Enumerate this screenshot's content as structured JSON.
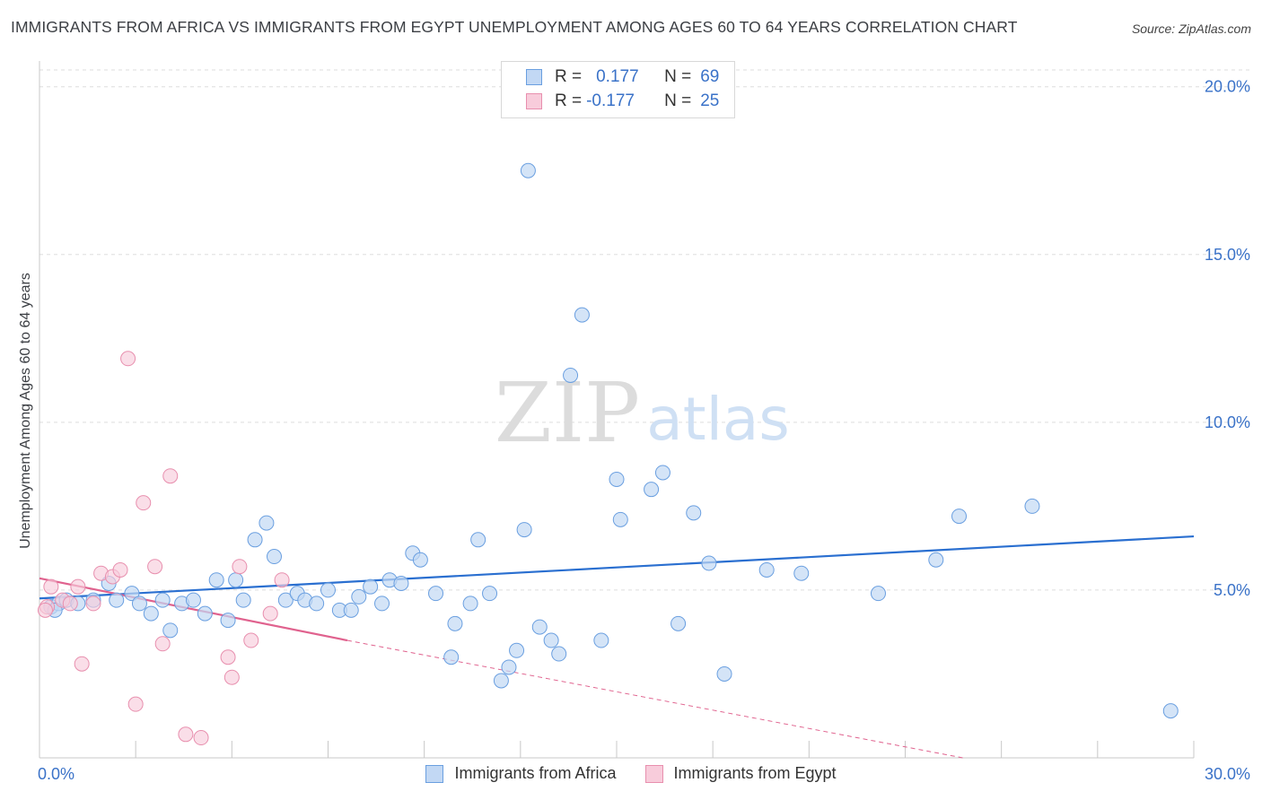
{
  "title": "IMMIGRANTS FROM AFRICA VS IMMIGRANTS FROM EGYPT UNEMPLOYMENT AMONG AGES 60 TO 64 YEARS CORRELATION CHART",
  "source": "Source: ZipAtlas.com",
  "watermark": {
    "zip": "ZIP",
    "atlas": "atlas"
  },
  "legend": {
    "africa": {
      "r_label": "R =",
      "r_value": "0.177",
      "n_label": "N =",
      "n_value": "69"
    },
    "egypt": {
      "r_label": "R =",
      "r_value": "-0.177",
      "n_label": "N =",
      "n_value": "25"
    }
  },
  "chart_data": {
    "type": "scatter",
    "title": "IMMIGRANTS FROM AFRICA VS IMMIGRANTS FROM EGYPT UNEMPLOYMENT AMONG AGES 60 TO 64 YEARS CORRELATION CHART",
    "xlabel": "",
    "ylabel": "Unemployment Among Ages 60 to 64 years",
    "xlim": [
      0,
      30
    ],
    "ylim": [
      0,
      20.5
    ],
    "x_tick_labels": [
      {
        "value": 0,
        "label": "0.0%"
      },
      {
        "value": 30,
        "label": "30.0%"
      }
    ],
    "y_tick_labels": [
      {
        "value": 5,
        "label": "5.0%"
      },
      {
        "value": 10,
        "label": "10.0%"
      },
      {
        "value": 15,
        "label": "15.0%"
      },
      {
        "value": 20,
        "label": "20.0%"
      }
    ],
    "grid": true,
    "colors": {
      "africa": "#6a9fe0",
      "africa_fill": "#c2d8f4",
      "africa_line": "#2a6fd0",
      "egypt": "#e88fae",
      "egypt_fill": "#f8ccdb",
      "egypt_line": "#e0628e"
    },
    "series": [
      {
        "name": "Immigrants from Africa",
        "points": [
          [
            0.3,
            4.5
          ],
          [
            0.5,
            4.6
          ],
          [
            0.7,
            4.7
          ],
          [
            1.0,
            4.6
          ],
          [
            1.4,
            4.7
          ],
          [
            1.8,
            5.2
          ],
          [
            2.0,
            4.7
          ],
          [
            2.4,
            4.9
          ],
          [
            2.6,
            4.6
          ],
          [
            2.9,
            4.3
          ],
          [
            3.2,
            4.7
          ],
          [
            3.4,
            3.8
          ],
          [
            3.7,
            4.6
          ],
          [
            4.0,
            4.7
          ],
          [
            4.3,
            4.3
          ],
          [
            4.6,
            5.3
          ],
          [
            4.9,
            4.1
          ],
          [
            5.1,
            5.3
          ],
          [
            5.3,
            4.7
          ],
          [
            5.6,
            6.5
          ],
          [
            5.9,
            7.0
          ],
          [
            6.1,
            6.0
          ],
          [
            6.4,
            4.7
          ],
          [
            6.7,
            4.9
          ],
          [
            6.9,
            4.7
          ],
          [
            7.2,
            4.6
          ],
          [
            7.5,
            5.0
          ],
          [
            7.8,
            4.4
          ],
          [
            8.1,
            4.4
          ],
          [
            8.3,
            4.8
          ],
          [
            8.6,
            5.1
          ],
          [
            8.9,
            4.6
          ],
          [
            9.1,
            5.3
          ],
          [
            9.4,
            5.2
          ],
          [
            9.7,
            6.1
          ],
          [
            9.9,
            5.9
          ],
          [
            10.3,
            4.9
          ],
          [
            10.8,
            4.0
          ],
          [
            10.7,
            3.0
          ],
          [
            11.2,
            4.6
          ],
          [
            11.4,
            6.5
          ],
          [
            11.7,
            4.9
          ],
          [
            12.0,
            2.3
          ],
          [
            12.2,
            2.7
          ],
          [
            12.4,
            3.2
          ],
          [
            12.6,
            6.8
          ],
          [
            12.7,
            17.5
          ],
          [
            13.0,
            3.9
          ],
          [
            13.3,
            3.5
          ],
          [
            13.5,
            3.1
          ],
          [
            13.8,
            11.4
          ],
          [
            14.1,
            13.2
          ],
          [
            14.6,
            3.5
          ],
          [
            15.0,
            8.3
          ],
          [
            15.1,
            7.1
          ],
          [
            15.9,
            8.0
          ],
          [
            16.2,
            8.5
          ],
          [
            16.6,
            4.0
          ],
          [
            17.0,
            7.3
          ],
          [
            17.4,
            5.8
          ],
          [
            17.8,
            2.5
          ],
          [
            18.9,
            5.6
          ],
          [
            19.8,
            5.5
          ],
          [
            21.8,
            4.9
          ],
          [
            23.3,
            5.9
          ],
          [
            23.9,
            7.2
          ],
          [
            25.8,
            7.5
          ],
          [
            29.4,
            1.4
          ],
          [
            0.4,
            4.4
          ]
        ],
        "trend": {
          "x": [
            0,
            30
          ],
          "y": [
            4.75,
            6.6
          ]
        }
      },
      {
        "name": "Immigrants from Egypt",
        "points": [
          [
            0.2,
            4.5
          ],
          [
            0.3,
            5.1
          ],
          [
            0.6,
            4.7
          ],
          [
            0.8,
            4.6
          ],
          [
            1.0,
            5.1
          ],
          [
            1.1,
            2.8
          ],
          [
            1.4,
            4.6
          ],
          [
            1.6,
            5.5
          ],
          [
            1.9,
            5.4
          ],
          [
            2.1,
            5.6
          ],
          [
            2.3,
            11.9
          ],
          [
            2.5,
            1.6
          ],
          [
            2.7,
            7.6
          ],
          [
            3.0,
            5.7
          ],
          [
            3.2,
            3.4
          ],
          [
            3.4,
            8.4
          ],
          [
            3.8,
            0.7
          ],
          [
            4.2,
            0.6
          ],
          [
            4.9,
            3.0
          ],
          [
            5.0,
            2.4
          ],
          [
            5.2,
            5.7
          ],
          [
            5.5,
            3.5
          ],
          [
            6.0,
            4.3
          ],
          [
            6.3,
            5.3
          ],
          [
            0.15,
            4.4
          ]
        ],
        "trend": {
          "x": [
            0,
            8
          ],
          "y": [
            5.35,
            3.5
          ]
        },
        "trend_dashed": {
          "x": [
            8,
            24
          ],
          "y": [
            3.5,
            0
          ]
        }
      }
    ]
  },
  "bottom_legend": {
    "africa_label": "Immigrants from Africa",
    "egypt_label": "Immigrants from Egypt"
  }
}
